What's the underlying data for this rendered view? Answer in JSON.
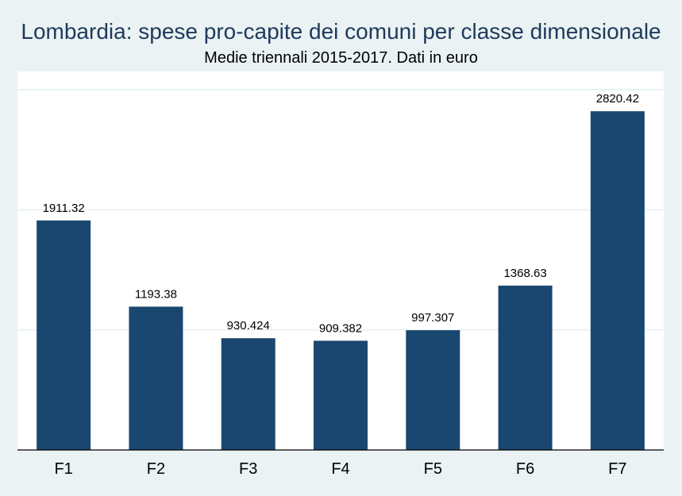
{
  "chart_data": {
    "type": "bar",
    "title": "Lombardia: spese pro-capite dei comuni per classe dimensionale",
    "subtitle": "Medie triennali 2015-2017. Dati in euro",
    "xlabel": "",
    "ylabel": "",
    "categories": [
      "F1",
      "F2",
      "F3",
      "F4",
      "F5",
      "F6",
      "F7"
    ],
    "values": [
      1911.32,
      1193.38,
      930.424,
      909.382,
      997.307,
      1368.63,
      2820.42
    ],
    "value_labels": [
      "1911.32",
      "1193.38",
      "930.424",
      "909.382",
      "997.307",
      "1368.63",
      "2820.42"
    ],
    "ylim": [
      0,
      3000
    ],
    "y_gridlines": [
      1000,
      2000,
      3000
    ],
    "grid": true,
    "legend": "none",
    "colors": {
      "bar": "#1a476f",
      "background": "#eaf2f3",
      "plot_background": "#ffffff",
      "gridline": "#eaf2f3",
      "title": "#1e3a5c"
    }
  }
}
